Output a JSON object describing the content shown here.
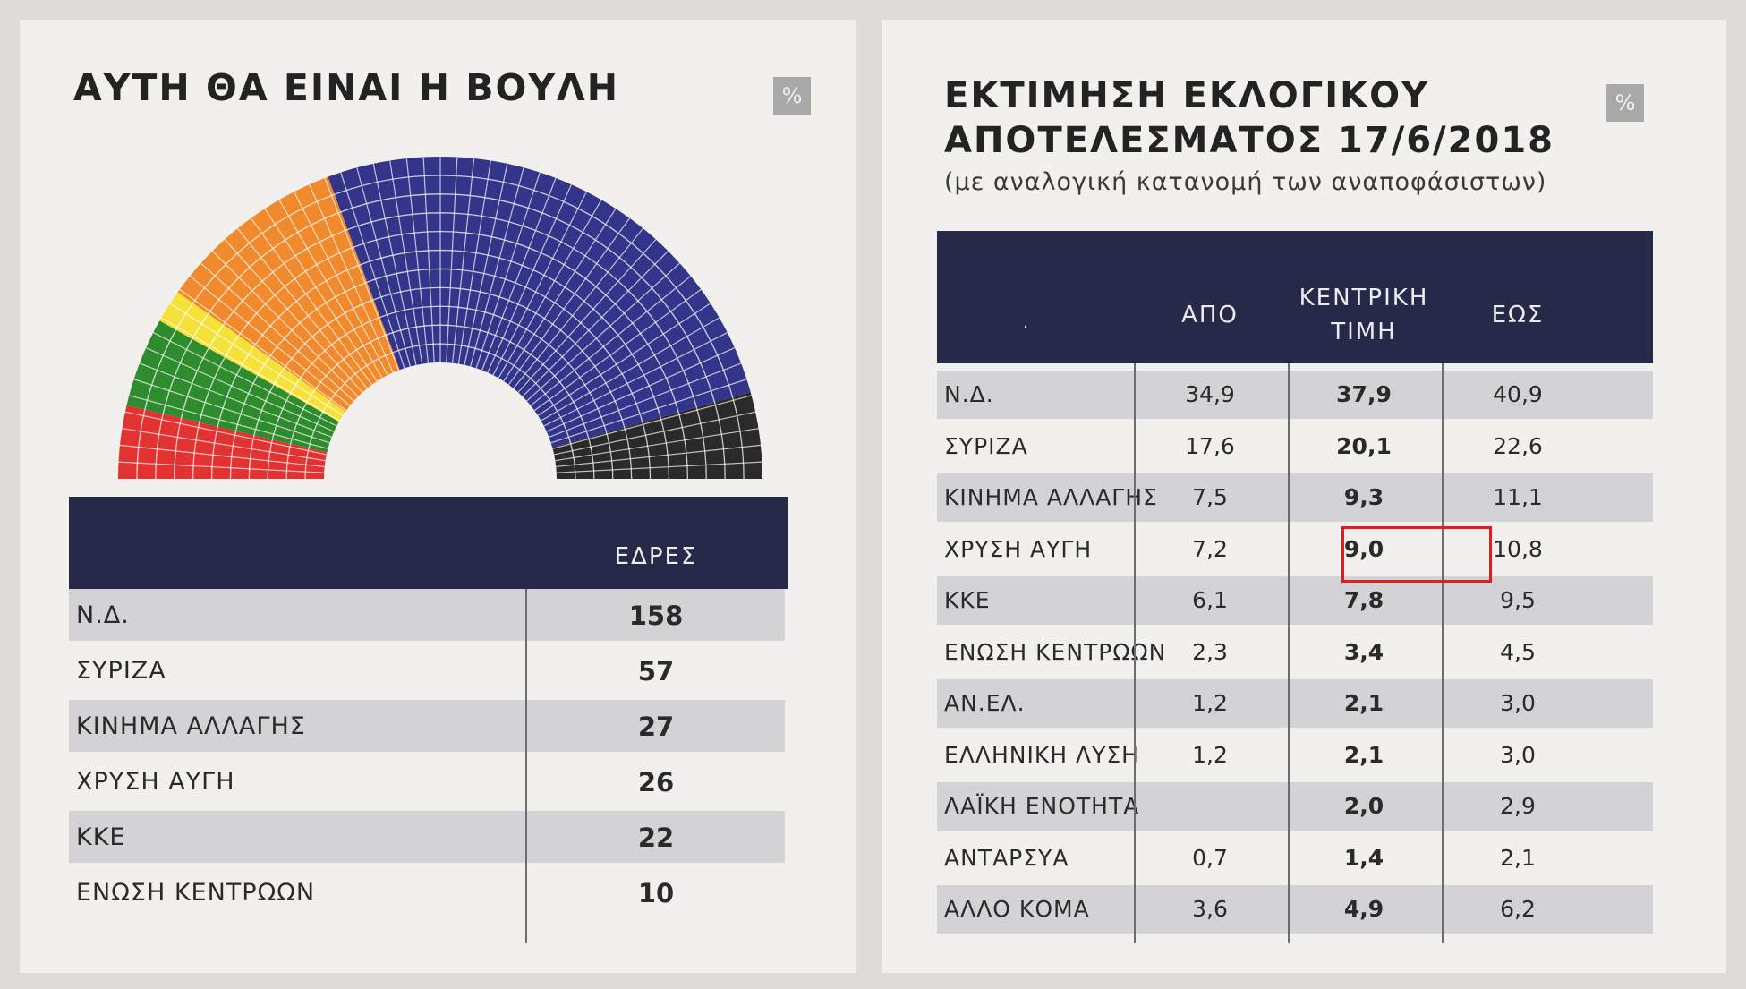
{
  "left_panel": {
    "title": "ΑΥΤΗ ΘΑ ΕΙΝΑΙ Η ΒΟΥΛΗ",
    "badge": "%",
    "chart_data": {
      "type": "pie",
      "style": "parliament-hemicycle",
      "series": [
        {
          "name": "Ν.Δ.",
          "value": 158,
          "color": "#33358a"
        },
        {
          "name": "ΣΥΡΙΖΑ",
          "value": 57,
          "color": "#f08a2c"
        },
        {
          "name": "ΚΙΝΗΜΑ ΑΛΛΑΓΗΣ",
          "value": 27,
          "color": "#2e8b2e"
        },
        {
          "name": "ΧΡΥΣΗ ΑΥΓΗ",
          "value": 26,
          "color": "#2a2a2a"
        },
        {
          "name": "ΚΚΕ",
          "value": 22,
          "color": "#e23232"
        },
        {
          "name": "ΕΝΩΣΗ ΚΕΝΤΡΩΩΝ",
          "value": 10,
          "color": "#f4e23a"
        }
      ]
    },
    "table": {
      "header": "ΕΔΡΕΣ",
      "rows": [
        {
          "party": "Ν.Δ.",
          "seats": "158"
        },
        {
          "party": "ΣΥΡΙΖΑ",
          "seats": "57"
        },
        {
          "party": "ΚΙΝΗΜΑ ΑΛΛΑΓΗΣ",
          "seats": "27"
        },
        {
          "party": "ΧΡΥΣΗ ΑΥΓΗ",
          "seats": "26"
        },
        {
          "party": "ΚΚΕ",
          "seats": "22"
        },
        {
          "party": "ΕΝΩΣΗ ΚΕΝΤΡΩΩΝ",
          "seats": "10"
        }
      ]
    }
  },
  "right_panel": {
    "title_line1": "ΕΚΤΙΜΗΣΗ ΕΚΛΟΓΙΚΟΥ",
    "title_line2": "ΑΠΟΤΕΛΕΣΜΑΤΟΣ 17/6/2018",
    "subtitle": "(με αναλογική κατανομή των αναποφάσιστων)",
    "badge": "%",
    "table": {
      "header_blank": ".",
      "header_from": "ΑΠΟ",
      "header_central_line1": "ΚΕΝΤΡΙΚΗ",
      "header_central_line2": "ΤΙΜΗ",
      "header_to": "ΕΩΣ",
      "rows": [
        {
          "party": "Ν.Δ.",
          "from": "34,9",
          "central": "37,9",
          "to": "40,9"
        },
        {
          "party": "ΣΥΡΙΖΑ",
          "from": "17,6",
          "central": "20,1",
          "to": "22,6"
        },
        {
          "party": "ΚΙΝΗΜΑ ΑΛΛΑΓΗΣ",
          "from": "7,5",
          "central": "9,3",
          "to": "11,1"
        },
        {
          "party": "ΧΡΥΣΗ ΑΥΓΗ",
          "from": "7,2",
          "central": "9,0",
          "to": "10,8"
        },
        {
          "party": "ΚΚΕ",
          "from": "6,1",
          "central": "7,8",
          "to": "9,5"
        },
        {
          "party": "ΕΝΩΣΗ ΚΕΝΤΡΩΩΝ",
          "from": "2,3",
          "central": "3,4",
          "to": "4,5"
        },
        {
          "party": "ΑΝ.ΕΛ.",
          "from": "1,2",
          "central": "2,1",
          "to": "3,0"
        },
        {
          "party": "ΕΛΛΗΝΙΚΗ ΛΥΣΗ",
          "from": "1,2",
          "central": "2,1",
          "to": "3,0"
        },
        {
          "party": "ΛΑΪΚΗ ΕΝΟΤΗΤΑ",
          "from": "",
          "central": "2,0",
          "to": "2,9"
        },
        {
          "party": "ΑΝΤΑΡΣΥΑ",
          "from": "0,7",
          "central": "1,4",
          "to": "2,1"
        },
        {
          "party": "ΑΛΛΟ ΚΟΜΑ",
          "from": "3,6",
          "central": "4,9",
          "to": "6,2"
        }
      ]
    }
  }
}
